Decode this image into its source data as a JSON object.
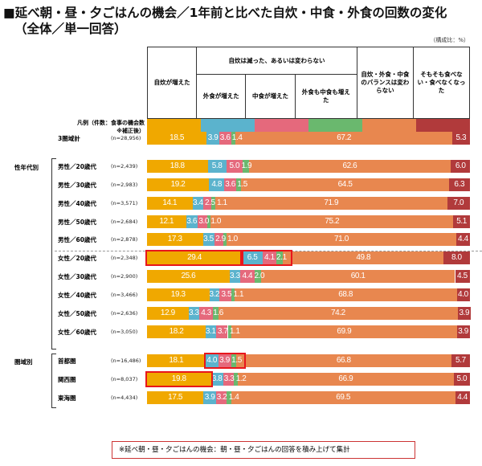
{
  "title_line1": "■延べ朝・昼・夕ごはんの機会／1年前と比べた自炊・中食・外食の回数の変化",
  "title_line2": "（全体／単一回答）",
  "unit": "（構成比：%）",
  "legend_label_1": "凡例（件数：食事の機会数",
  "legend_label_2": "※補正後）",
  "header": {
    "group": "自炊は減った、あるいは変わらない"
  },
  "note": "※延べ朝・昼・夕ごはんの機会：朝・昼・夕ごはんの回答を積み上げて集計",
  "groups": [
    "性年代別",
    "圏域別"
  ],
  "chart_data": {
    "type": "bar",
    "orientation": "horizontal",
    "stacked": true,
    "xlim": [
      0,
      100
    ],
    "series": [
      {
        "name": "自炊が増えた",
        "color": "#f0a800",
        "values": [
          18.5,
          18.8,
          19.2,
          14.1,
          12.1,
          17.3,
          29.4,
          25.6,
          19.3,
          12.9,
          18.2,
          18.1,
          19.8,
          17.5
        ]
      },
      {
        "name": "外食が増えた",
        "color": "#5bb3cd",
        "values": [
          3.9,
          5.8,
          4.8,
          3.4,
          3.6,
          3.5,
          6.5,
          3.3,
          3.2,
          3.3,
          3.1,
          4.0,
          3.8,
          3.9
        ]
      },
      {
        "name": "中食が増えた",
        "color": "#e5697c",
        "values": [
          3.6,
          5.0,
          3.6,
          2.5,
          3.0,
          2.9,
          4.1,
          4.4,
          3.5,
          4.3,
          3.7,
          3.9,
          3.3,
          3.2
        ]
      },
      {
        "name": "外食も中食も増えた",
        "color": "#6ab86e",
        "values": [
          1.4,
          1.9,
          1.5,
          1.1,
          1.0,
          1.0,
          2.1,
          2.0,
          1.1,
          1.6,
          1.1,
          1.5,
          1.2,
          1.4
        ]
      },
      {
        "name": "自炊・外食・中食のバランスは変わらない",
        "color": "#e8874f",
        "values": [
          67.2,
          62.6,
          64.5,
          71.9,
          75.2,
          71.0,
          49.8,
          60.1,
          68.8,
          74.2,
          69.9,
          66.8,
          66.9,
          69.5
        ]
      },
      {
        "name": "そもそも食べない・食べなくなった",
        "color": "#b13a3b",
        "values": [
          5.3,
          6.0,
          6.3,
          7.0,
          5.1,
          4.4,
          8.0,
          4.5,
          4.0,
          3.9,
          3.9,
          5.7,
          5.0,
          4.4
        ]
      }
    ],
    "categories": [
      "3圏域計",
      "男性／20歳代",
      "男性／30歳代",
      "男性／40歳代",
      "男性／50歳代",
      "男性／60歳代",
      "女性／20歳代",
      "女性／30歳代",
      "女性／40歳代",
      "女性／50歳代",
      "女性／60歳代",
      "首都圏",
      "関西圏",
      "東海圏"
    ],
    "n": [
      "(n=28,956)",
      "(n=2,439)",
      "(n=2,983)",
      "(n=3,571)",
      "(n=2,684)",
      "(n=2,878)",
      "(n=2,348)",
      "(n=2,900)",
      "(n=3,466)",
      "(n=2,636)",
      "(n=3,050)",
      "(n=16,486)",
      "(n=8,037)",
      "(n=4,434)"
    ],
    "highlights": [
      {
        "row": 6,
        "segments": [
          0,
          0
        ]
      },
      {
        "row": 6,
        "segments": [
          1,
          3
        ]
      },
      {
        "row": 11,
        "segments": [
          1,
          3
        ]
      },
      {
        "row": 12,
        "segments": [
          0,
          0
        ]
      }
    ]
  }
}
